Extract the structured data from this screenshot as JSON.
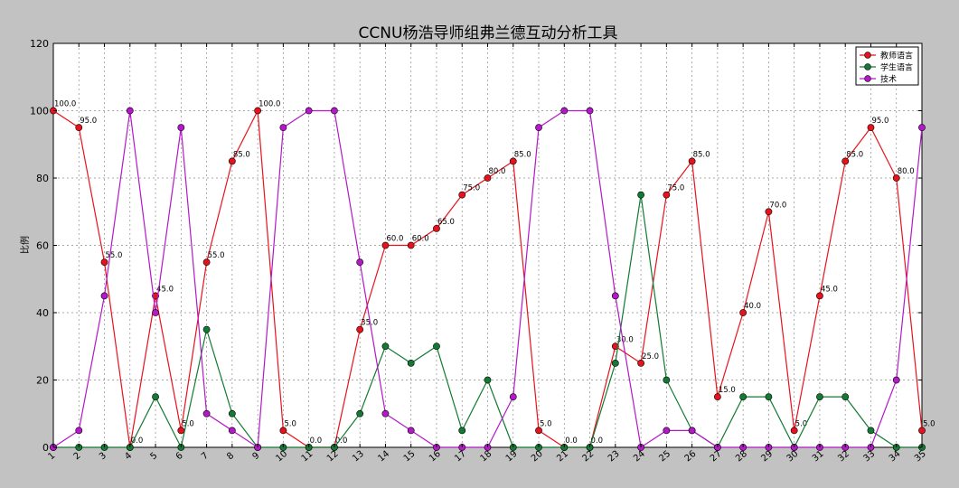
{
  "chart_data": {
    "type": "line",
    "title": "CCNU杨浩导师组弗兰德互动分析工具",
    "xlabel": "",
    "ylabel": "比例",
    "x": [
      1,
      2,
      3,
      4,
      5,
      6,
      7,
      8,
      9,
      10,
      11,
      12,
      13,
      14,
      15,
      16,
      17,
      18,
      19,
      20,
      21,
      22,
      23,
      24,
      25,
      26,
      27,
      28,
      29,
      30,
      31,
      32,
      33,
      34,
      35
    ],
    "xlim": [
      1,
      35
    ],
    "ylim": [
      0,
      120
    ],
    "yticks": [
      0,
      20,
      40,
      60,
      80,
      100,
      120
    ],
    "grid": true,
    "legend_position": "top-right",
    "series": [
      {
        "name": "教师语言",
        "color": "#e8121c",
        "show_labels": true,
        "values": [
          100,
          95,
          55,
          0,
          45,
          5,
          55,
          85,
          100,
          5,
          0,
          0,
          35,
          60,
          60,
          65,
          75,
          80,
          85,
          5,
          0,
          0,
          30,
          25,
          75,
          85,
          15,
          40,
          70,
          5,
          45,
          85,
          95,
          80,
          5
        ]
      },
      {
        "name": "学生语言",
        "color": "#127a32",
        "show_labels": false,
        "values": [
          0,
          0,
          0,
          0,
          15,
          0,
          35,
          10,
          0,
          0,
          0,
          0,
          10,
          30,
          25,
          30,
          5,
          20,
          0,
          0,
          0,
          0,
          25,
          75,
          20,
          5,
          0,
          15,
          15,
          0,
          15,
          15,
          5,
          0,
          0
        ]
      },
      {
        "name": "技术",
        "color": "#b418c8",
        "show_labels": false,
        "values": [
          0,
          5,
          45,
          100,
          40,
          95,
          10,
          5,
          0,
          95,
          100,
          100,
          55,
          10,
          5,
          0,
          0,
          0,
          15,
          95,
          100,
          100,
          45,
          0,
          5,
          5,
          0,
          0,
          0,
          0,
          0,
          0,
          0,
          20,
          95
        ]
      }
    ]
  }
}
